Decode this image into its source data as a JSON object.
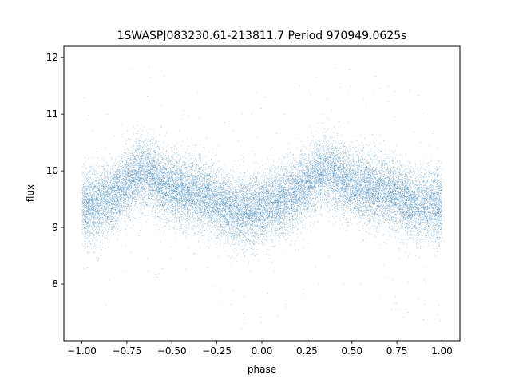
{
  "chart_data": {
    "type": "scatter",
    "title": "1SWASPJ083230.61-213811.7 Period 970949.0625s",
    "xlabel": "phase",
    "ylabel": "flux",
    "xlim": [
      -1.1,
      1.1
    ],
    "ylim": [
      7.0,
      12.2
    ],
    "xticks": [
      -1.0,
      -0.75,
      -0.5,
      -0.25,
      0.0,
      0.25,
      0.5,
      0.75,
      1.0
    ],
    "xtick_labels": [
      "−1.00",
      "−0.75",
      "−0.50",
      "−0.25",
      "0.00",
      "0.25",
      "0.50",
      "0.75",
      "1.00"
    ],
    "yticks": [
      8,
      9,
      10,
      11,
      12
    ],
    "ytick_labels": [
      "8",
      "9",
      "10",
      "11",
      "12"
    ],
    "grid": false,
    "point_color": "#1f77b4",
    "series": [
      {
        "phase_range": [
          -1.0,
          1.0
        ],
        "mean_flux_profile": {
          "phase": [
            -1.0,
            -0.9,
            -0.8,
            -0.7,
            -0.62,
            -0.55,
            -0.45,
            -0.35,
            -0.25,
            -0.15,
            -0.05,
            0.0,
            0.05,
            0.15,
            0.25,
            0.3,
            0.38,
            0.45,
            0.55,
            0.65,
            0.75,
            0.85,
            0.95,
            1.0
          ],
          "flux": [
            9.35,
            9.45,
            9.6,
            9.95,
            9.95,
            9.75,
            9.65,
            9.6,
            9.45,
            9.3,
            9.3,
            9.35,
            9.4,
            9.55,
            9.75,
            9.95,
            10.0,
            9.85,
            9.7,
            9.65,
            9.55,
            9.4,
            9.4,
            9.4
          ]
        },
        "scatter_sigma": 0.4,
        "n_points_approx": 24000
      }
    ]
  }
}
